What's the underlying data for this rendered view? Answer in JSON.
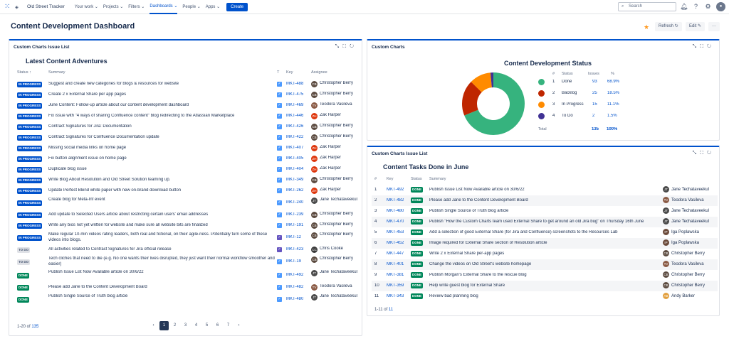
{
  "nav": {
    "brand": "Old Street Tracker",
    "items": [
      "Your work ⌄",
      "Projects ⌄",
      "Filters ⌄",
      "Dashboards ⌄",
      "People ⌄",
      "Apps ⌄"
    ],
    "active_index": 3,
    "create": "Create",
    "search_placeholder": "Search"
  },
  "page": {
    "title": "Content Development Dashboard",
    "refresh": "Refresh",
    "edit": "Edit",
    "more": "···"
  },
  "left": {
    "panel_title": "Custom Charts Issue List",
    "subtitle": "Latest Content Adventures",
    "headers": {
      "status": "Status ↑",
      "summary": "Summary",
      "t": "T",
      "key": "Key",
      "assignee": "Assignee"
    },
    "rows": [
      {
        "status": "IN PROGRESS",
        "summary": "Suggest and create new categories for blogs & resources for website",
        "type": "task",
        "key": "MKT-488",
        "assignee": "Christopher Berry",
        "color": "#5b4a3f"
      },
      {
        "status": "IN PROGRESS",
        "summary": "Create 2 x External Share per app pages",
        "type": "task",
        "key": "MKT-475",
        "assignee": "Christopher Berry",
        "color": "#5b4a3f"
      },
      {
        "status": "IN PROGRESS",
        "summary": "June Content: Follow-up article about our content development dashboard",
        "type": "task",
        "key": "MKT-469",
        "assignee": "Teodora Vasileva",
        "color": "#8a5a44"
      },
      {
        "status": "IN PROGRESS",
        "summary": "Fix issue with \"4 ways of sharing Confluence content\" blog redirecting to the Atlassian Marketplace",
        "type": "task",
        "key": "MKT-446",
        "assignee": "Zak Harper",
        "color": "#de350b"
      },
      {
        "status": "IN PROGRESS",
        "summary": "Contract Signatures for Jira: Documentation",
        "type": "task",
        "key": "MKT-426",
        "assignee": "Christopher Berry",
        "color": "#5b4a3f"
      },
      {
        "status": "IN PROGRESS",
        "summary": "Contract Signatures for Confluence Documentation update",
        "type": "task",
        "key": "MKT-422",
        "assignee": "Christopher Berry",
        "color": "#5b4a3f"
      },
      {
        "status": "IN PROGRESS",
        "summary": "Missing social media links on home page",
        "type": "task",
        "key": "MKT-407",
        "assignee": "Zak Harper",
        "color": "#de350b"
      },
      {
        "status": "IN PROGRESS",
        "summary": "Fix button alignment issue on home page",
        "type": "task",
        "key": "MKT-405",
        "assignee": "Zak Harper",
        "color": "#de350b"
      },
      {
        "status": "IN PROGRESS",
        "summary": "Duplicate blog issue",
        "type": "task",
        "key": "MKT-404",
        "assignee": "Zak Harper",
        "color": "#de350b"
      },
      {
        "status": "IN PROGRESS",
        "summary": "Write Blog About Resolution and Old Street Solution teaming up.",
        "type": "task",
        "key": "MKT-349",
        "assignee": "Christopher Berry",
        "color": "#5b4a3f"
      },
      {
        "status": "IN PROGRESS",
        "summary": "Update Perfect Blend white paper with new on-brand download button",
        "type": "task",
        "key": "MKT-262",
        "assignee": "Zak Harper",
        "color": "#de350b"
      },
      {
        "status": "IN PROGRESS",
        "summary": "Create blog for Meta-Inf event",
        "type": "task",
        "key": "MKT-240",
        "assignee": "Jane Techataveekul",
        "color": "#4a4a4a"
      },
      {
        "status": "IN PROGRESS",
        "summary": "Add update to Selected Users article about restricting certain users' email addresses",
        "type": "task",
        "key": "MKT-239",
        "assignee": "Christopher Berry",
        "color": "#5b4a3f"
      },
      {
        "status": "IN PROGRESS",
        "summary": "Write any bios not yet written for website and make sure all website bits are finalized",
        "type": "task",
        "key": "MKT-191",
        "assignee": "Christopher Berry",
        "color": "#5b4a3f"
      },
      {
        "status": "IN PROGRESS",
        "summary": "Make regular 10-min videos rating leaders, both real and fictional, on their agile-ness. Potentially turn some of these videos into blogs.",
        "type": "subtask",
        "key": "MKT-12",
        "assignee": "Christopher Berry",
        "color": "#5b4a3f"
      },
      {
        "status": "TO DO",
        "summary": "All activities related to Contract Signatures for Jira official release",
        "type": "subtask",
        "key": "MKT-423",
        "assignee": "Chris Cooke",
        "color": "#3a3a3a"
      },
      {
        "status": "TO DO",
        "summary": "Tech cliches that need to die (e.g. No one wants their lives disrupted, they just want their normal workflow smoother and easier)",
        "type": "task",
        "key": "MKT-19",
        "assignee": "Christopher Berry",
        "color": "#5b4a3f"
      },
      {
        "status": "DONE",
        "summary": "Publish Issue List Now Available article on 30/6/22",
        "type": "task",
        "key": "MKT-492",
        "assignee": "Jane Techataveekul",
        "color": "#4a4a4a"
      },
      {
        "status": "DONE",
        "summary": "Please add Jane to the Content Development Board",
        "type": "task",
        "key": "MKT-482",
        "assignee": "Teodora Vasileva",
        "color": "#8a5a44"
      },
      {
        "status": "DONE",
        "summary": "Publish Single Source of Truth blog article",
        "type": "task",
        "key": "MKT-480",
        "assignee": "Jane Techataveekul",
        "color": "#4a4a4a"
      }
    ],
    "footer_prefix": "1-20 of ",
    "footer_total": "135",
    "pages": [
      "‹",
      "1",
      "2",
      "3",
      "4",
      "5",
      "6",
      "7",
      "›"
    ]
  },
  "chart": {
    "panel_title": "Custom Charts",
    "title": "Content Development Status",
    "headers": {
      "num": "#",
      "status": "Status",
      "issues": "Issues",
      "pct": "%"
    },
    "total_label": "Total",
    "total_issues": "135",
    "total_pct": "100%"
  },
  "chart_data": {
    "type": "pie",
    "title": "Content Development Status",
    "categories": [
      "Done",
      "Backlog",
      "In Progress",
      "To Do"
    ],
    "values": [
      93,
      25,
      15,
      2
    ],
    "percent": [
      "68.9%",
      "18.5%",
      "11.1%",
      "1.5%"
    ],
    "colors": [
      "#36b37e",
      "#bf2600",
      "#ff8b00",
      "#403294"
    ]
  },
  "right": {
    "panel_title": "Custom Charts Issue List",
    "subtitle": "Content Tasks Done in June",
    "headers": {
      "num": "#",
      "key": "Key",
      "status": "Status",
      "summary": "Summary"
    },
    "rows": [
      {
        "num": "1",
        "key": "MKT-492",
        "status": "DONE",
        "summary": "Publish Issue List Now Available article on 30/6/22",
        "assignee": "Jane Techataveekul",
        "color": "#4a4a4a"
      },
      {
        "num": "2",
        "key": "MKT-482",
        "status": "DONE",
        "summary": "Please add Jane to the Content Development Board",
        "assignee": "Teodora Vasileva",
        "color": "#8a5a44"
      },
      {
        "num": "3",
        "key": "MKT-480",
        "status": "DONE",
        "summary": "Publish Single Source of Truth blog article",
        "assignee": "Jane Techataveekul",
        "color": "#4a4a4a"
      },
      {
        "num": "4",
        "key": "MKT-470",
        "status": "DONE",
        "summary": "Publish \"How the Custom Charts team used External Share to get around an old Jira bug\" on Thursday 16th June",
        "assignee": "Jane Techataveekul",
        "color": "#4a4a4a"
      },
      {
        "num": "5",
        "key": "MKT-453",
        "status": "DONE",
        "summary": "Add a selection of good External Share (for Jira and Confluence) screenshots to the Resources Lab",
        "assignee": "Iga Poplawska",
        "color": "#6b4a3a"
      },
      {
        "num": "6",
        "key": "MKT-452",
        "status": "DONE",
        "summary": "Image required for External Share section of Resolution article",
        "assignee": "Iga Poplawska",
        "color": "#6b4a3a"
      },
      {
        "num": "7",
        "key": "MKT-447",
        "status": "DONE",
        "summary": "Write 2 x External Share per-app pages",
        "assignee": "Christopher Berry",
        "color": "#5b4a3f"
      },
      {
        "num": "8",
        "key": "MKT-401",
        "status": "DONE",
        "summary": "Change the videos on Old Street's website homepage",
        "assignee": "Teodora Vasileva",
        "color": "#8a5a44"
      },
      {
        "num": "9",
        "key": "MKT-381",
        "status": "DONE",
        "summary": "Publish Morgan's External Share to the rescue blog",
        "assignee": "Christopher Berry",
        "color": "#5b4a3f"
      },
      {
        "num": "10",
        "key": "MKT-359",
        "status": "DONE",
        "summary": "Help write guest blog for External Share",
        "assignee": "Christopher Berry",
        "color": "#5b4a3f"
      },
      {
        "num": "11",
        "key": "MKT-343",
        "status": "DONE",
        "summary": "Review bad planning blog",
        "assignee": "Andy Barker",
        "color": "#e2a03f"
      }
    ],
    "footer_prefix": "1-11 of ",
    "footer_total": "11"
  }
}
